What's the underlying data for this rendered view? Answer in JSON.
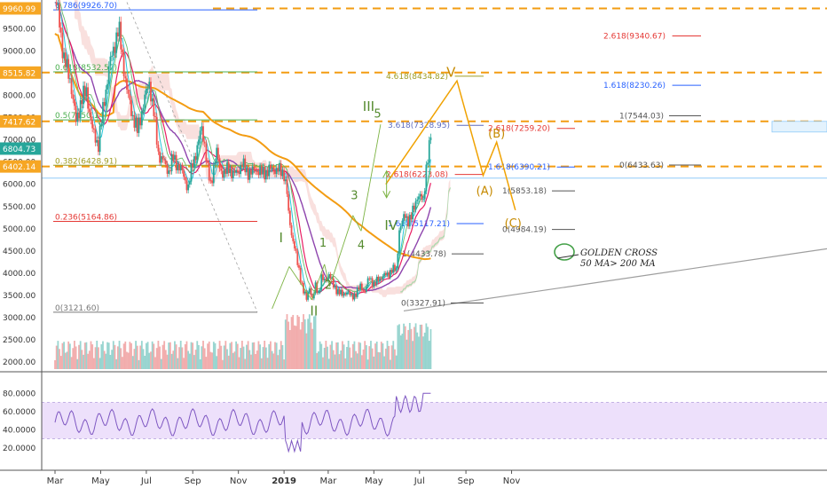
{
  "chart_data": {
    "type": "line",
    "title": "",
    "xlabel": "",
    "ylabel": "",
    "x_ticks": [
      "Mar",
      "May",
      "Jul",
      "Sep",
      "Nov",
      "2019",
      "Mar",
      "May",
      "Jul",
      "Sep",
      "Nov"
    ],
    "y_ticks": [
      9500,
      9000,
      8500,
      8000,
      7500,
      7000,
      6500,
      6000,
      5500,
      5000,
      4500,
      4000,
      3500,
      3000,
      2500,
      2000
    ],
    "y_tick_labels": [
      "9500.00",
      "9000.00",
      "8500.00",
      "8000.00",
      "7500.00",
      "7000.00",
      "6500.00",
      "6000.00",
      "5500.00",
      "5000.00",
      "4500.00",
      "4000.00",
      "3500.00",
      "3000.00",
      "2500.00",
      "2000.00"
    ],
    "ylim": [
      1800,
      10150
    ],
    "price_tags": [
      {
        "value": 9960.99,
        "label": "9960.99",
        "color": "#f6a623"
      },
      {
        "value": 8515.82,
        "label": "8515.82",
        "color": "#f6a623"
      },
      {
        "value": 7417.62,
        "label": "7417.62",
        "color": "#f6a623"
      },
      {
        "value": 6804.73,
        "label": "6804.73",
        "color": "#26a69a"
      },
      {
        "value": 6402.14,
        "label": "6402.14",
        "color": "#f6a623"
      }
    ],
    "fib_retracement": [
      {
        "label": "0.786(9926.70)",
        "value": 9926.7
      },
      {
        "label": "0.618(8532.57)",
        "value": 8532.57
      },
      {
        "label": "0.5(7450.14)",
        "value": 7450.14
      },
      {
        "label": "0.382(6428.91)",
        "value": 6428.91
      },
      {
        "label": "0.236(5164.86)",
        "value": 5164.86
      },
      {
        "label": "0(3121.60)",
        "value": 3121.6
      }
    ],
    "fib_extension": [
      {
        "label": "4.618(8434.82)",
        "value": 8434.82
      },
      {
        "label": "3.618(7328.95)",
        "value": 7328.95
      },
      {
        "label": "2.618(6223.08)",
        "value": 6223.08
      },
      {
        "label": "1.618(5117.21)",
        "value": 5117.21
      },
      {
        "label": "1(4433.78)",
        "value": 4433.78
      },
      {
        "label": "0(3327.91)",
        "value": 3327.91
      },
      {
        "label": "2.618(7259.20)",
        "value": 7259.2
      },
      {
        "label": "1.618(6390.21)",
        "value": 6390.21
      },
      {
        "label": "1(5853.18)",
        "value": 5853.18
      },
      {
        "label": "0(4984.19)",
        "value": 4984.19
      },
      {
        "label": "2.618(9340.67)",
        "value": 9340.67
      },
      {
        "label": "1.618(8230.26)",
        "value": 8230.26
      },
      {
        "label": "1(7544.03)",
        "value": 7544.03
      },
      {
        "label": "0(6433.63)",
        "value": 6433.63
      }
    ],
    "wave_labels": [
      {
        "label": "I",
        "date": "2018-12-28",
        "value": 4700
      },
      {
        "label": "II",
        "date": "2019-02-10",
        "value": 3050
      },
      {
        "label": "1",
        "date": "2019-02-22",
        "value": 4600
      },
      {
        "label": "2",
        "date": "2019-03-01",
        "value": 3650
      },
      {
        "label": "3",
        "date": "2019-04-05",
        "value": 5670
      },
      {
        "label": "4",
        "date": "2019-04-14",
        "value": 4550
      },
      {
        "label": "III",
        "date": "2019-04-24",
        "value": 7650
      },
      {
        "label": "5",
        "date": "2019-05-06",
        "value": 7500
      },
      {
        "label": "IV",
        "date": "2019-05-24",
        "value": 4980
      },
      {
        "label": "V",
        "date": "2019-08-12",
        "value": 8420
      },
      {
        "label": "(A)",
        "date": "2019-09-26",
        "value": 5770
      },
      {
        "label": "(B)",
        "date": "2019-10-12",
        "value": 7050
      },
      {
        "label": "(C)",
        "date": "2019-11-03",
        "value": 5040
      }
    ],
    "annotations": [
      "GOLDEN CROSS",
      "50 MA> 200 MA"
    ],
    "rsi": {
      "y_ticks": [
        80,
        60,
        40,
        20
      ],
      "y_tick_labels": [
        "80.0000",
        "60.0000",
        "40.0000",
        "20.0000"
      ],
      "overbought": 70,
      "oversold": 30
    },
    "grid": false
  },
  "colors": {
    "fib_blue": "#2962ff",
    "fib_red": "#e53935",
    "fib_green": "#4caf50",
    "fib_olive": "#9e9d24",
    "ma200": "#f39c12",
    "ma_purple": "#8e44ad",
    "ma_magenta": "#e91e63",
    "candle_up": "#26a69a",
    "candle_down": "#ef5350",
    "wave_green": "#558b2f",
    "wave_orange": "#c68a00",
    "rsi_line": "#7e57c2",
    "rsi_band": "#ede0fb"
  }
}
